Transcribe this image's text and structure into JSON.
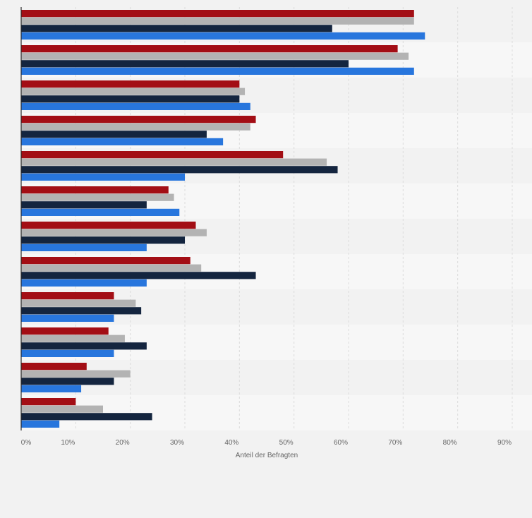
{
  "chart_data": {
    "type": "bar",
    "orientation": "horizontal",
    "xlabel": "Anteil der Befragten",
    "xlim": [
      0,
      90
    ],
    "x_ticks": [
      "0%",
      "10%",
      "20%",
      "30%",
      "40%",
      "50%",
      "60%",
      "70%",
      "80%",
      "90%"
    ],
    "grid": true,
    "categories_visible": false,
    "series": [
      {
        "color": "#a30e15",
        "values": [
          72,
          69,
          40,
          43,
          48,
          27,
          32,
          31,
          17,
          16,
          12,
          10
        ]
      },
      {
        "color": "#b3b3b3",
        "values": [
          72,
          71,
          41,
          42,
          56,
          28,
          34,
          33,
          21,
          19,
          20,
          15
        ]
      },
      {
        "color": "#14253f",
        "values": [
          57,
          60,
          40,
          34,
          58,
          23,
          30,
          43,
          22,
          23,
          17,
          24
        ]
      },
      {
        "color": "#2876dd",
        "values": [
          74,
          72,
          42,
          37,
          30,
          29,
          23,
          23,
          17,
          17,
          11,
          7
        ]
      }
    ]
  }
}
